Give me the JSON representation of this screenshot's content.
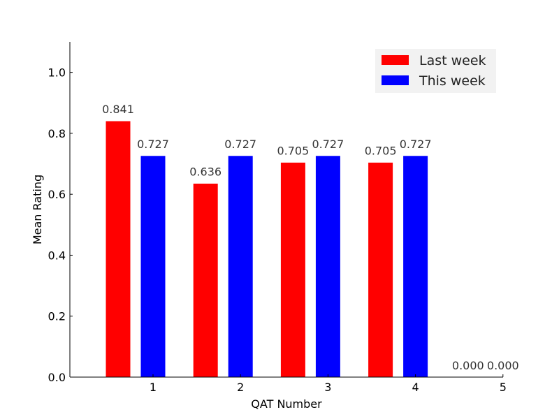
{
  "chart_data": {
    "type": "bar",
    "title": "",
    "xlabel": "QAT Number",
    "ylabel": "Mean Rating",
    "categories": [
      "1",
      "2",
      "3",
      "4",
      "5"
    ],
    "ylim": [
      0,
      1.1
    ],
    "yticks": [
      "0.0",
      "0.2",
      "0.4",
      "0.6",
      "0.8",
      "1.0"
    ],
    "legend_position": "top-right",
    "grid": false,
    "series": [
      {
        "name": "Last week",
        "color": "#ff0000",
        "values": [
          0.841,
          0.636,
          0.705,
          0.705,
          0.0
        ],
        "labels": [
          "0.841",
          "0.636",
          "0.705",
          "0.705",
          "0.000"
        ]
      },
      {
        "name": "This week",
        "color": "#0000ff",
        "values": [
          0.727,
          0.727,
          0.727,
          0.727,
          0.0
        ],
        "labels": [
          "0.727",
          "0.727",
          "0.727",
          "0.727",
          "0.000"
        ]
      }
    ]
  }
}
